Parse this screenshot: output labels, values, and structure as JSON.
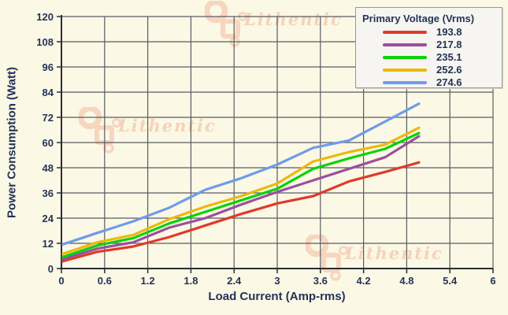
{
  "watermark": {
    "text": "Lithentic"
  },
  "colors": {
    "background": "#FBF8E5",
    "grid": "#5A5B63",
    "axis": "#2B2C34",
    "label_text": "#243358",
    "legend_background": "#F6F5F1",
    "legend_border": "#98989C",
    "watermark": "#F5CDB4"
  },
  "chart_data": {
    "type": "line",
    "title": "",
    "xlabel": "Load Current (Amp-rms)",
    "ylabel": "Power Consumption (Watt)",
    "xlim": [
      0,
      6
    ],
    "ylim": [
      0,
      120
    ],
    "grid": true,
    "xticks": [
      0,
      0.6,
      1.2,
      1.8,
      2.4,
      3,
      3.6,
      4.2,
      4.8,
      5.4,
      6
    ],
    "xtick_labels": [
      "0",
      "0.6",
      "1.2",
      "1.8",
      "2.4",
      "3",
      "3.6",
      "4.2",
      "4.8",
      "5.4",
      "6"
    ],
    "yticks": [
      0,
      12,
      24,
      36,
      48,
      60,
      72,
      84,
      96,
      108,
      120
    ],
    "ytick_labels": [
      "0",
      "12",
      "24",
      "36",
      "48",
      "60",
      "72",
      "84",
      "96",
      "108",
      "120"
    ],
    "legend": {
      "title": "Primary Voltage (Vrms)",
      "position": "top-right"
    },
    "x": [
      0.02,
      0.5,
      1.0,
      1.5,
      2.0,
      2.5,
      3.0,
      3.5,
      4.0,
      4.5,
      4.97
    ],
    "series": [
      {
        "name": "193.8",
        "color": "#DF3A2B",
        "values": [
          3.5,
          8,
          10.5,
          15,
          20.5,
          26,
          31,
          34.5,
          41.5,
          46,
          50.5
        ]
      },
      {
        "name": "217.8",
        "color": "#9B4F9E",
        "values": [
          4.5,
          9.5,
          12.5,
          19.5,
          24,
          30.5,
          36.5,
          42,
          47.5,
          53,
          63
        ]
      },
      {
        "name": "235.1",
        "color": "#0BD20B",
        "values": [
          5.5,
          11,
          14.5,
          21.5,
          27,
          32.5,
          38,
          47.5,
          52.5,
          57,
          64.5
        ]
      },
      {
        "name": "252.6",
        "color": "#EBB90E",
        "values": [
          7,
          12.5,
          16,
          23.5,
          29.5,
          34.5,
          40.5,
          51,
          55.5,
          59,
          67
        ]
      },
      {
        "name": "274.6",
        "color": "#6F9CE9",
        "values": [
          11.5,
          17,
          22.5,
          29,
          37.5,
          43,
          49.5,
          57.5,
          61,
          70,
          78.5
        ]
      }
    ]
  }
}
